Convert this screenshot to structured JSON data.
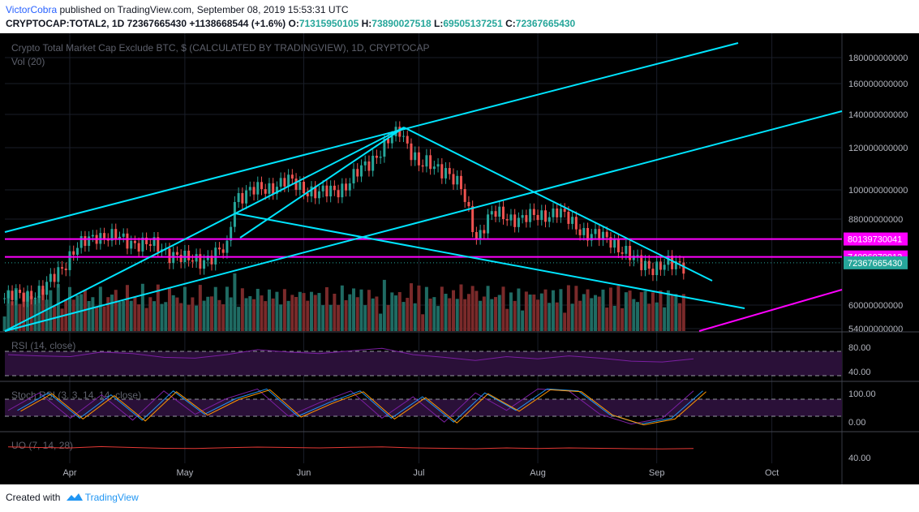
{
  "header": {
    "author": "VictorCobra",
    "published": "published on TradingView.com, September 08, 2019 15:53:31 UTC",
    "symbol": "CRYPTOCAP:TOTAL2, 1D",
    "last": "72367665430",
    "change": "+1138668544 (+1.6%)",
    "o_label": "O:",
    "o_val": "71315950105",
    "h_label": "H:",
    "h_val": "73890027518",
    "l_label": "L:",
    "l_val": "69505137251",
    "c_label": "C:",
    "c_val": "72367665430"
  },
  "chart_data": {
    "type": "candlestick",
    "title": "Crypto Total Market Cap Exclude BTC, $ (CALCULATED BY TRADINGVIEW), 1D, CRYPTOCAP",
    "volume_label": "Vol (20)",
    "x_ticks": [
      "Apr",
      "May",
      "Jun",
      "Jul",
      "Aug",
      "Sep",
      "Oct"
    ],
    "y_ticks": [
      180000000000,
      160000000000,
      140000000000,
      120000000000,
      100000000000,
      88000000000,
      60000000000,
      54000000000
    ],
    "y_tick_labels": [
      "180000000000",
      "160000000000",
      "140000000000",
      "120000000000",
      "100000000000",
      "88000000000",
      "60000000000",
      "54000000000"
    ],
    "price_path": [
      {
        "date": "2019-03-15",
        "value": 62000000000
      },
      {
        "date": "2019-03-25",
        "value": 64000000000
      },
      {
        "date": "2019-04-02",
        "value": 76000000000
      },
      {
        "date": "2019-04-08",
        "value": 82000000000
      },
      {
        "date": "2019-04-15",
        "value": 80000000000
      },
      {
        "date": "2019-04-25",
        "value": 77000000000
      },
      {
        "date": "2019-05-01",
        "value": 73000000000
      },
      {
        "date": "2019-05-08",
        "value": 74000000000
      },
      {
        "date": "2019-05-12",
        "value": 77000000000
      },
      {
        "date": "2019-05-14",
        "value": 97000000000
      },
      {
        "date": "2019-05-20",
        "value": 100000000000
      },
      {
        "date": "2019-05-28",
        "value": 104000000000
      },
      {
        "date": "2019-06-05",
        "value": 98000000000
      },
      {
        "date": "2019-06-12",
        "value": 102000000000
      },
      {
        "date": "2019-06-20",
        "value": 117000000000
      },
      {
        "date": "2019-06-26",
        "value": 130000000000
      },
      {
        "date": "2019-07-01",
        "value": 112000000000
      },
      {
        "date": "2019-07-08",
        "value": 110000000000
      },
      {
        "date": "2019-07-12",
        "value": 100000000000
      },
      {
        "date": "2019-07-16",
        "value": 81000000000
      },
      {
        "date": "2019-07-20",
        "value": 90000000000
      },
      {
        "date": "2019-07-28",
        "value": 88000000000
      },
      {
        "date": "2019-08-06",
        "value": 91000000000
      },
      {
        "date": "2019-08-14",
        "value": 82000000000
      },
      {
        "date": "2019-08-20",
        "value": 80000000000
      },
      {
        "date": "2019-08-26",
        "value": 73000000000
      },
      {
        "date": "2019-09-01",
        "value": 71000000000
      },
      {
        "date": "2019-09-08",
        "value": 72367665430
      }
    ],
    "price_labels": [
      {
        "text": "80139730041",
        "value": 80139730041,
        "color": "#ff00ff"
      },
      {
        "text": "74096070912",
        "value": 74096070912,
        "color": "#ff00ff"
      },
      {
        "text": "72367665430",
        "value": 72367665430,
        "color": "#26a69a"
      }
    ],
    "horizontal_lines": [
      {
        "value": 80139730041,
        "color": "#ff00ff"
      },
      {
        "value": 74096070912,
        "color": "#ff00ff"
      }
    ],
    "indicators": [
      {
        "label": "RSI (14, close)",
        "ticks": [
          "80.00",
          "40.00"
        ],
        "values": [
          55,
          52,
          50,
          62,
          58,
          48,
          46,
          55,
          68,
          62,
          58,
          65,
          72,
          55,
          48,
          40,
          50,
          44,
          52,
          46,
          38,
          36,
          44
        ]
      },
      {
        "label": "Stoch RSI (3, 3, 14, 14, close)",
        "ticks": [
          "100.00",
          "0.00"
        ],
        "values": [
          40,
          85,
          20,
          80,
          15,
          90,
          30,
          70,
          95,
          25,
          60,
          90,
          20,
          75,
          10,
          85,
          40,
          95,
          90,
          30,
          5,
          20,
          90
        ]
      },
      {
        "label": "UO (7, 14, 28)",
        "ticks": [
          "40.00"
        ],
        "values": [
          55,
          52,
          50,
          56,
          52,
          48,
          47,
          51,
          54,
          52,
          50,
          53,
          55,
          50,
          48,
          46,
          50,
          47,
          50,
          48,
          46,
          45,
          47
        ]
      }
    ],
    "colors": {
      "up": "#26a69a",
      "down": "#ef5350",
      "trendline": "#00e5ff",
      "level": "#ff00ff",
      "background": "#000000"
    }
  },
  "footer": {
    "created_with": "Created with",
    "brand": "TradingView"
  }
}
